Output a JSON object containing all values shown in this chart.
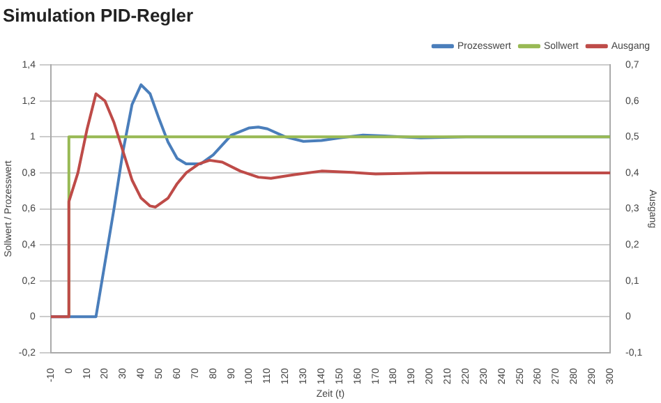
{
  "chart_data": {
    "type": "line",
    "title": "Simulation PID-Regler",
    "xlabel": "Zeit (t)",
    "ylabel": "Sollwert / Prozesswert",
    "y2label": "Ausgang",
    "xlim": [
      -10,
      300
    ],
    "xticks": [
      -10,
      0,
      10,
      20,
      30,
      40,
      50,
      60,
      70,
      80,
      90,
      100,
      110,
      120,
      130,
      140,
      150,
      160,
      170,
      180,
      190,
      200,
      210,
      220,
      230,
      240,
      250,
      260,
      270,
      280,
      290,
      300
    ],
    "ylim": [
      -0.2,
      1.4
    ],
    "yticks": [
      {
        "value": -0.2,
        "label": "-0,2"
      },
      0,
      {
        "value": 0.2,
        "label": "0,2"
      },
      {
        "value": 0.4,
        "label": "0,4"
      },
      {
        "value": 0.6,
        "label": "0,6"
      },
      {
        "value": 0.8,
        "label": "0,8"
      },
      1,
      {
        "value": 1.2,
        "label": "1,2"
      },
      {
        "value": 1.4,
        "label": "1,4"
      }
    ],
    "y2lim": [
      -0.1,
      0.7
    ],
    "y2ticks": [
      {
        "value": -0.1,
        "label": "-0,1"
      },
      0,
      {
        "value": 0.1,
        "label": "0,1"
      },
      {
        "value": 0.2,
        "label": "0,2"
      },
      {
        "value": 0.3,
        "label": "0,3"
      },
      {
        "value": 0.4,
        "label": "0,4"
      },
      {
        "value": 0.5,
        "label": "0,5"
      },
      {
        "value": 0.6,
        "label": "0,6"
      },
      {
        "value": 0.7,
        "label": "0,7"
      }
    ],
    "grid": "y",
    "legend": "top right",
    "marker": "none",
    "line_style": "solid",
    "series": [
      {
        "name": "Prozesswert",
        "color": "#4a7ebb",
        "x": [
          -10,
          15,
          20,
          25,
          30,
          35,
          40,
          45,
          50,
          55,
          60,
          65,
          73,
          80,
          90,
          100,
          105,
          110,
          120,
          130,
          140,
          150,
          163,
          175,
          195,
          220,
          300
        ],
        "values": [
          0,
          0,
          0.3,
          0.6,
          0.92,
          1.18,
          1.29,
          1.24,
          1.1,
          0.97,
          0.88,
          0.85,
          0.85,
          0.9,
          1.01,
          1.05,
          1.055,
          1.045,
          1.0,
          0.975,
          0.98,
          0.995,
          1.01,
          1.005,
          0.995,
          1.0,
          1.0
        ]
      },
      {
        "name": "Sollwert",
        "color": "#98b954",
        "x": [
          0,
          0,
          300
        ],
        "values": [
          0,
          1,
          1
        ]
      },
      {
        "name": "Ausgang",
        "color": "#be4b48",
        "axis": "y2",
        "x": [
          -10,
          0,
          0,
          5,
          10,
          15,
          20,
          25,
          30,
          35,
          40,
          45,
          48,
          55,
          60,
          65,
          72,
          78,
          85,
          95,
          105,
          112,
          125,
          140,
          155,
          170,
          200,
          300
        ],
        "values": [
          0,
          0,
          0.32,
          0.4,
          0.52,
          0.62,
          0.6,
          0.54,
          0.46,
          0.38,
          0.33,
          0.308,
          0.305,
          0.33,
          0.37,
          0.4,
          0.425,
          0.435,
          0.43,
          0.405,
          0.388,
          0.385,
          0.395,
          0.405,
          0.402,
          0.397,
          0.4,
          0.4
        ]
      }
    ]
  }
}
